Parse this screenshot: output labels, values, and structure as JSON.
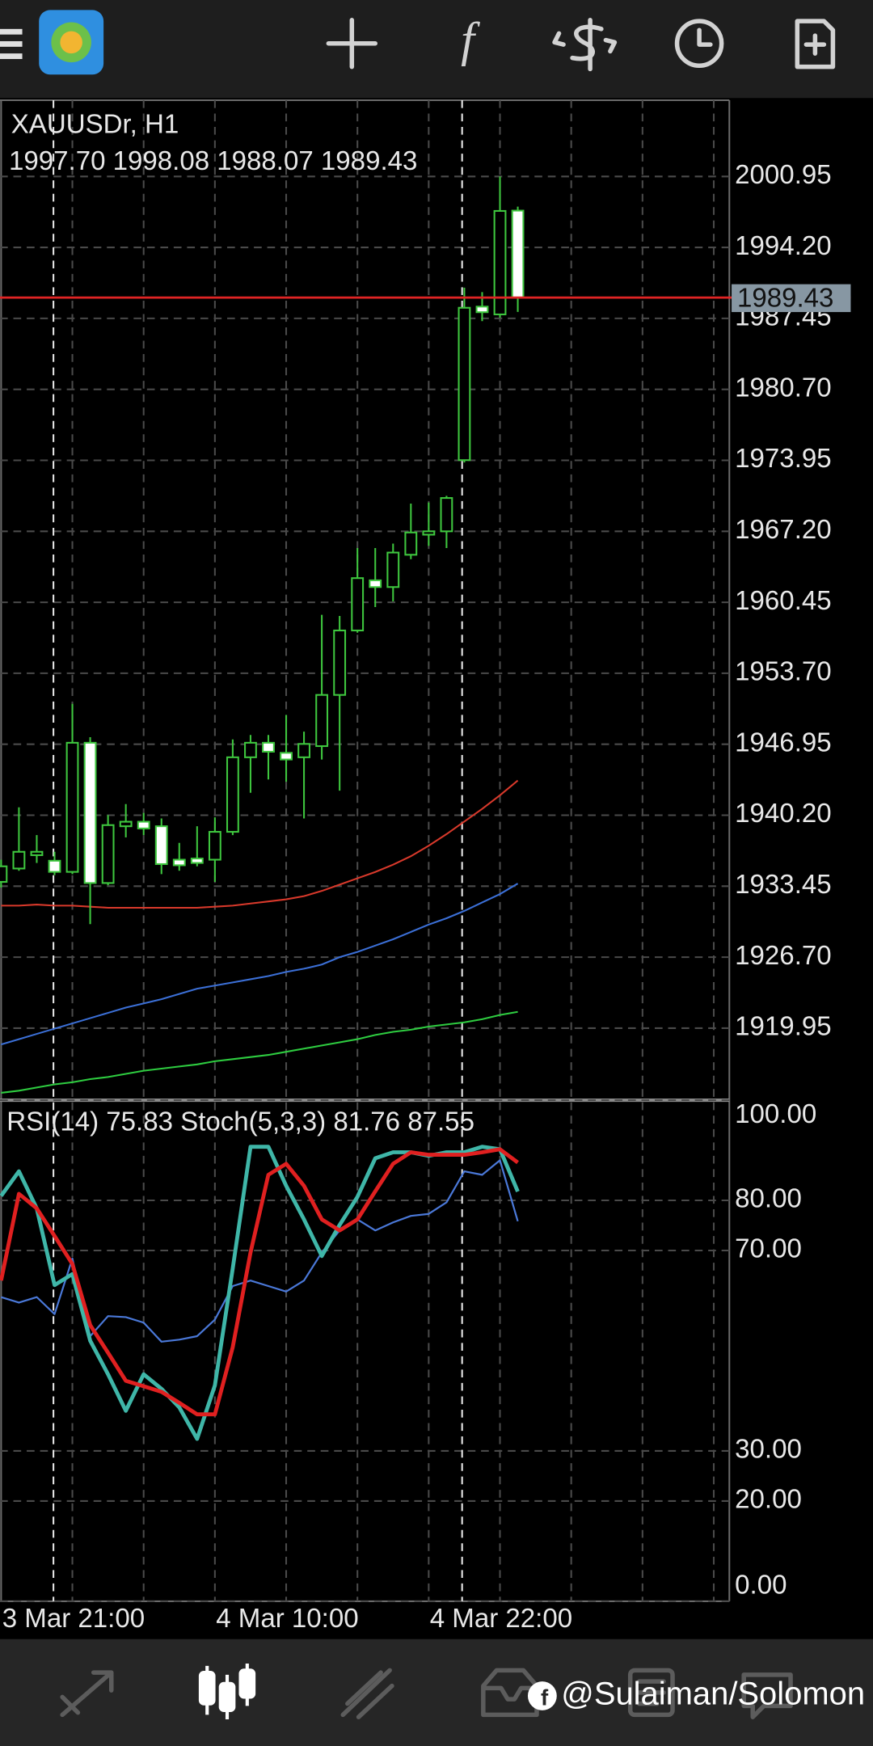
{
  "chart_data": [
    {
      "type": "candlestick",
      "title": "XAUUSDr, H1",
      "subtitle": "1997.70 1998.08 1988.07 1989.43",
      "categories": [
        "3 Mar 21:00",
        null,
        null,
        null,
        null,
        null,
        null,
        null,
        null,
        null,
        null,
        null,
        "4 Mar 10:00",
        null,
        null,
        null,
        null,
        null,
        null,
        null,
        null,
        null,
        null,
        null,
        "4 Mar 22:00",
        null,
        null,
        null,
        null,
        null
      ],
      "open": [
        1933.86,
        1935.13,
        1936.4,
        1935.87,
        1934.81,
        1947.09,
        1933.75,
        1939.15,
        1939.58,
        1939.15,
        1935.97,
        1936.08,
        1935.97,
        1938.62,
        1945.71,
        1947.09,
        1946.13,
        1945.71,
        1946.77,
        1951.64,
        1957.77,
        1962.54,
        1961.9,
        1964.97,
        1966.88,
        1967.2,
        1973.97,
        1988.57,
        1987.83,
        1997.7
      ],
      "high": [
        1935.97,
        1940.95,
        1938.31,
        1936.72,
        1950.79,
        1947.62,
        1940.21,
        1941.26,
        1940.42,
        1939.89,
        1937.57,
        1939.15,
        1940.0,
        1947.41,
        1947.83,
        1947.83,
        1949.73,
        1948.15,
        1959.26,
        1959.15,
        1965.61,
        1965.61,
        1966.03,
        1969.84,
        1969.94,
        1970.58,
        1990.37,
        1989.95,
        2000.95,
        1998.08
      ],
      "low": [
        1933.33,
        1934.92,
        1935.66,
        1934.5,
        1934.6,
        1929.84,
        1933.54,
        1938.09,
        1938.31,
        1934.6,
        1934.92,
        1935.34,
        1933.86,
        1938.31,
        1942.33,
        1943.6,
        1943.38,
        1939.89,
        1945.5,
        1942.54,
        1957.56,
        1960.0,
        1960.53,
        1964.55,
        1965.82,
        1965.61,
        1973.75,
        1987.19,
        1987.51,
        1988.07
      ],
      "close": [
        1935.34,
        1936.72,
        1936.72,
        1934.81,
        1947.09,
        1933.75,
        1939.26,
        1939.58,
        1938.94,
        1935.55,
        1935.44,
        1935.66,
        1938.62,
        1945.71,
        1947.09,
        1946.24,
        1945.5,
        1946.98,
        1951.64,
        1957.77,
        1962.75,
        1961.9,
        1965.18,
        1967.09,
        1967.2,
        1970.37,
        1988.46,
        1988.04,
        1997.67,
        1989.43
      ],
      "candle_outline": "#3ec63e",
      "bull_fill": "#000000",
      "bear_fill": "#ffffff",
      "series": [
        {
          "color": "#d8392b",
          "values": [
            1931.6,
            1931.6,
            1931.7,
            1931.6,
            1931.6,
            1931.5,
            1931.4,
            1931.4,
            1931.4,
            1931.4,
            1931.4,
            1931.4,
            1931.5,
            1931.6,
            1931.8,
            1932.0,
            1932.2,
            1932.5,
            1933.0,
            1933.6,
            1934.2,
            1934.8,
            1935.5,
            1936.3,
            1937.3,
            1938.4,
            1939.6,
            1940.8,
            1942.1,
            1943.5
          ]
        },
        {
          "color": "#3b6fd6",
          "values": [
            1918.4,
            1918.9,
            1919.4,
            1919.9,
            1920.4,
            1920.9,
            1921.4,
            1921.9,
            1922.3,
            1922.7,
            1923.2,
            1923.7,
            1924.0,
            1924.3,
            1924.6,
            1924.9,
            1925.3,
            1925.6,
            1926.0,
            1926.7,
            1927.2,
            1927.8,
            1928.4,
            1929.1,
            1929.8,
            1930.4,
            1931.1,
            1931.9,
            1932.7,
            1933.7
          ]
        },
        {
          "color": "#2ecc40",
          "values": [
            1913.8,
            1914.0,
            1914.3,
            1914.6,
            1914.8,
            1915.1,
            1915.3,
            1915.6,
            1915.9,
            1916.1,
            1916.3,
            1916.5,
            1916.8,
            1917.0,
            1917.2,
            1917.4,
            1917.7,
            1918.0,
            1918.3,
            1918.6,
            1918.9,
            1919.3,
            1919.6,
            1919.8,
            1920.1,
            1920.3,
            1920.5,
            1920.8,
            1921.2,
            1921.5
          ]
        }
      ],
      "ylim": [
        1913.1,
        2008.2
      ],
      "yticks": [
        2000.95,
        {
          "value": 1994.2,
          "label": "1994.20"
        },
        1987.45,
        {
          "value": 1980.7,
          "label": "1980.70"
        },
        1973.95,
        {
          "value": 1967.2,
          "label": "1967.20"
        },
        1960.45,
        {
          "value": 1953.7,
          "label": "1953.70"
        },
        1946.95,
        {
          "value": 1940.2,
          "label": "1940.20"
        },
        1933.45,
        {
          "value": 1926.7,
          "label": "1926.70"
        },
        1919.95
      ],
      "grid": true,
      "current_price": 1989.43,
      "current_price_color": "#e02424"
    },
    {
      "type": "line",
      "title": "RSI(14) 75.83 Stoch(5,3,3) 81.76 87.55",
      "series": [
        {
          "color": "#4a78d8",
          "width": 1.6,
          "values": [
            60.7,
            59.6,
            60.7,
            57.3,
            68.4,
            52.9,
            56.9,
            56.7,
            55.6,
            51.8,
            52.2,
            52.9,
            56.2,
            62.9,
            64.0,
            62.9,
            61.8,
            64.0,
            69.6,
            74.0,
            76.2,
            74.0,
            75.6,
            76.9,
            77.3,
            79.6,
            85.8,
            85.1,
            88.0,
            75.83
          ]
        },
        {
          "color": "#3fb6a8",
          "width": 3.5,
          "values": [
            80.9,
            85.8,
            78.4,
            63.1,
            65.3,
            52.0,
            45.3,
            38.0,
            45.3,
            42.4,
            38.7,
            32.4,
            43.1,
            66.4,
            90.7,
            90.7,
            82.9,
            76.2,
            68.9,
            75.1,
            80.7,
            88.4,
            89.6,
            89.6,
            88.9,
            89.6,
            89.6,
            90.7,
            90.2,
            81.76
          ]
        },
        {
          "color": "#e02020",
          "width": 3.5,
          "values": [
            64.0,
            81.3,
            78.4,
            72.9,
            67.3,
            55.1,
            49.6,
            44.0,
            42.9,
            41.8,
            39.6,
            37.3,
            37.3,
            50.7,
            69.6,
            85.1,
            87.3,
            82.9,
            76.2,
            74.0,
            76.2,
            81.8,
            87.3,
            89.6,
            89.1,
            89.1,
            89.1,
            89.6,
            90.2,
            87.55
          ]
        }
      ],
      "ylim": [
        0,
        100
      ],
      "yticks": [
        {
          "value": 100,
          "label": "100.00"
        },
        {
          "value": 80,
          "label": "80.00"
        },
        {
          "value": 70,
          "label": "70.00"
        },
        {
          "value": 30,
          "label": "30.00"
        },
        {
          "value": 20,
          "label": "20.00"
        },
        {
          "value": 0,
          "label": "0.00"
        }
      ],
      "grid": true
    }
  ],
  "watermark": "@Sulaiman/Solomon"
}
